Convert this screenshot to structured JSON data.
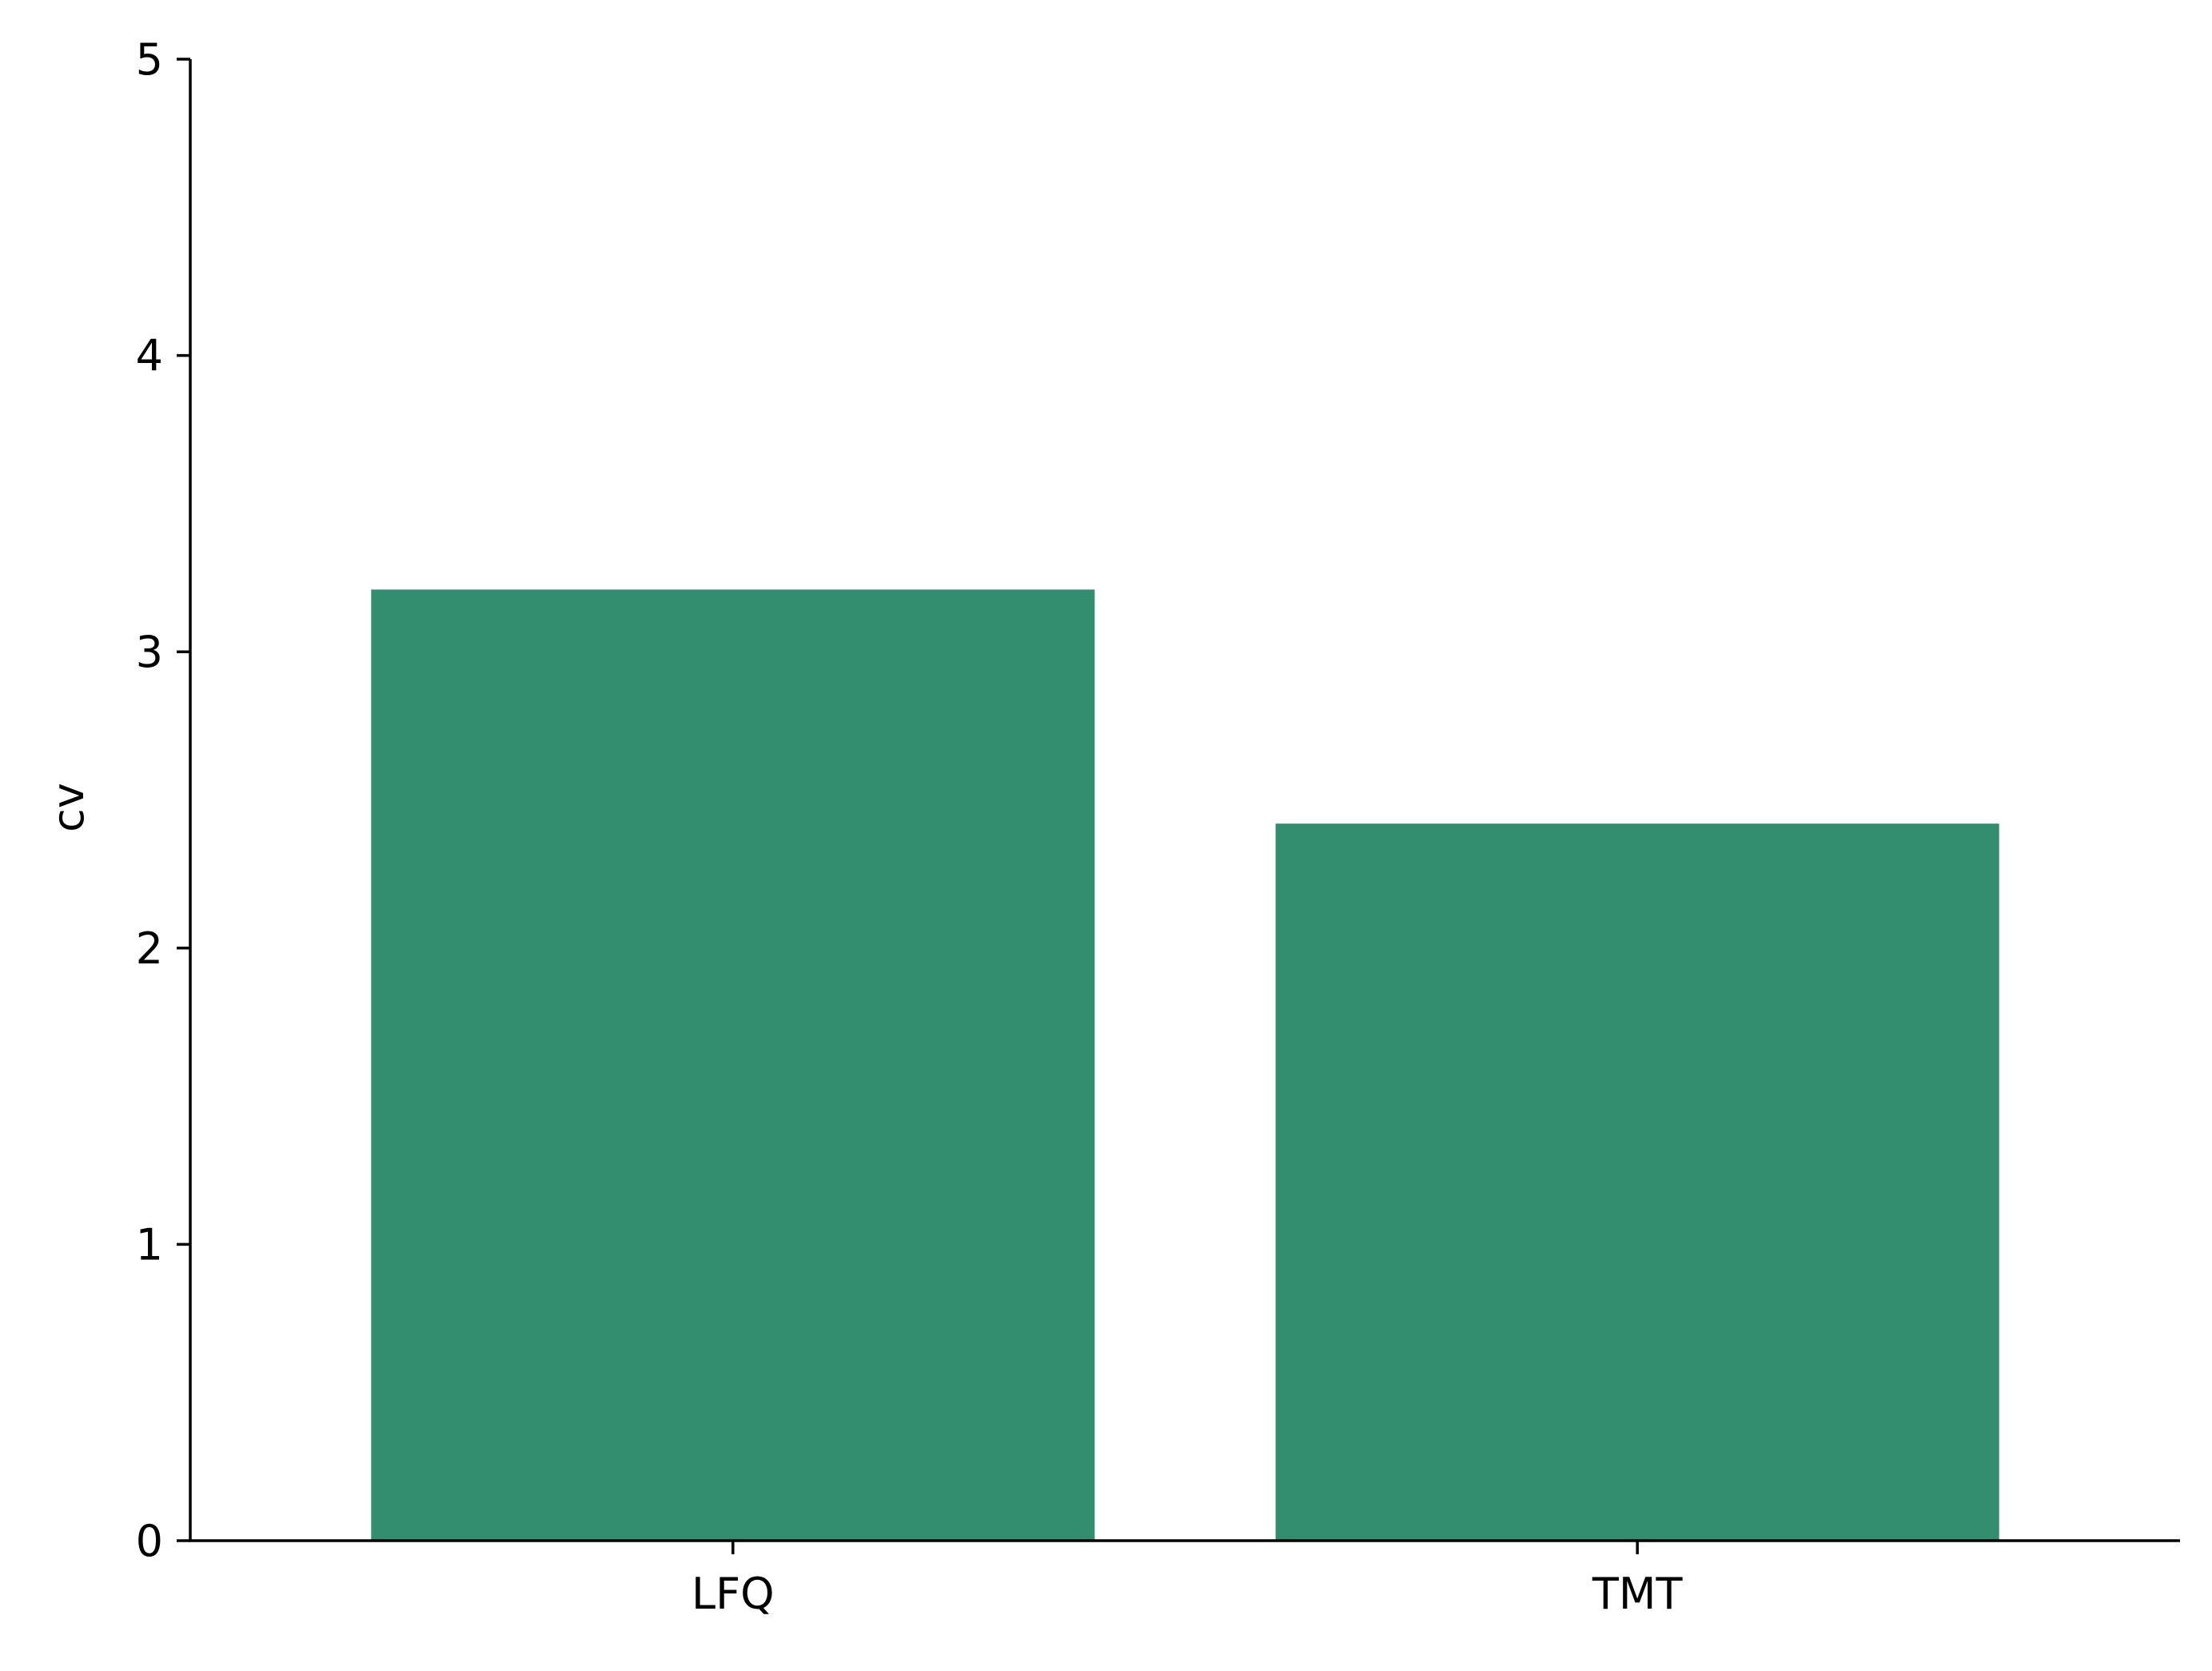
{
  "chart_data": {
    "type": "bar",
    "categories": [
      "LFQ",
      "TMT"
    ],
    "values": [
      3.21,
      2.42
    ],
    "title": "",
    "xlabel": "",
    "ylabel": "cv",
    "ylim": [
      0,
      5
    ],
    "yticks": [
      "0",
      "1",
      "2",
      "3",
      "4",
      "5"
    ],
    "grid": false,
    "bar_color": "#328e6f"
  }
}
